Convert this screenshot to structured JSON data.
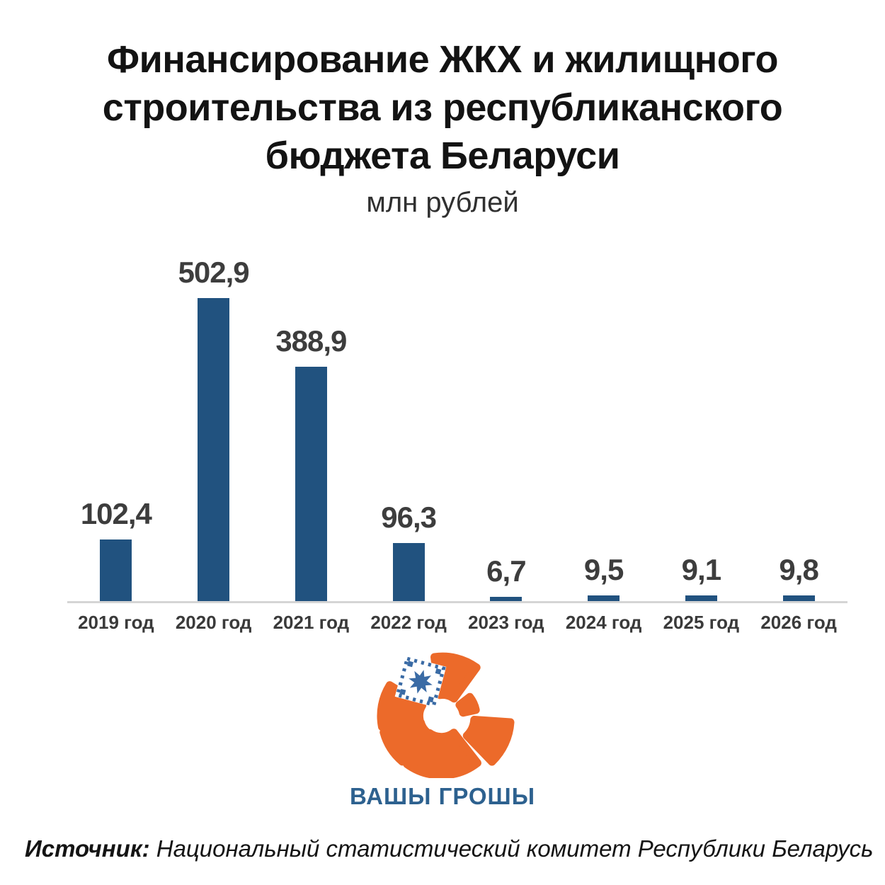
{
  "header": {
    "title_lines": [
      "Финансирование ЖКХ и жилищного",
      "строительства из республиканского",
      "бюджета Беларуси"
    ],
    "subtitle": "млн рублей"
  },
  "chart_data": {
    "type": "bar",
    "title": "Финансирование ЖКХ и жилищного строительства из республиканского бюджета Беларуси",
    "units_label": "млн рублей",
    "categories": [
      "2019 год",
      "2020 год",
      "2021 год",
      "2022 год",
      "2023 год",
      "2024 год",
      "2025 год",
      "2026 год"
    ],
    "values": [
      102.4,
      502.9,
      388.9,
      96.3,
      6.7,
      9.5,
      9.1,
      9.8
    ],
    "value_labels": [
      "102,4",
      "502,9",
      "388,9",
      "96,3",
      "6,7",
      "9,5",
      "9,1",
      "9,8"
    ],
    "xlabel": "",
    "ylabel": "",
    "ylim": [
      0,
      502.9
    ],
    "grid": false,
    "legend_position": "none",
    "bar_color": "#21527F",
    "axis_line_color": "#D5D5D5",
    "value_label_color": "#3D3D3D"
  },
  "logo": {
    "text": "ВАШЫ ГРОШЫ",
    "orange": "#EC6A2A",
    "ornament_blue": "#3A6BA5",
    "text_color": "#2D618F"
  },
  "footer": {
    "source_label": "Источник:",
    "source_text": " Национальный статистический комитет Республики Беларусь"
  }
}
